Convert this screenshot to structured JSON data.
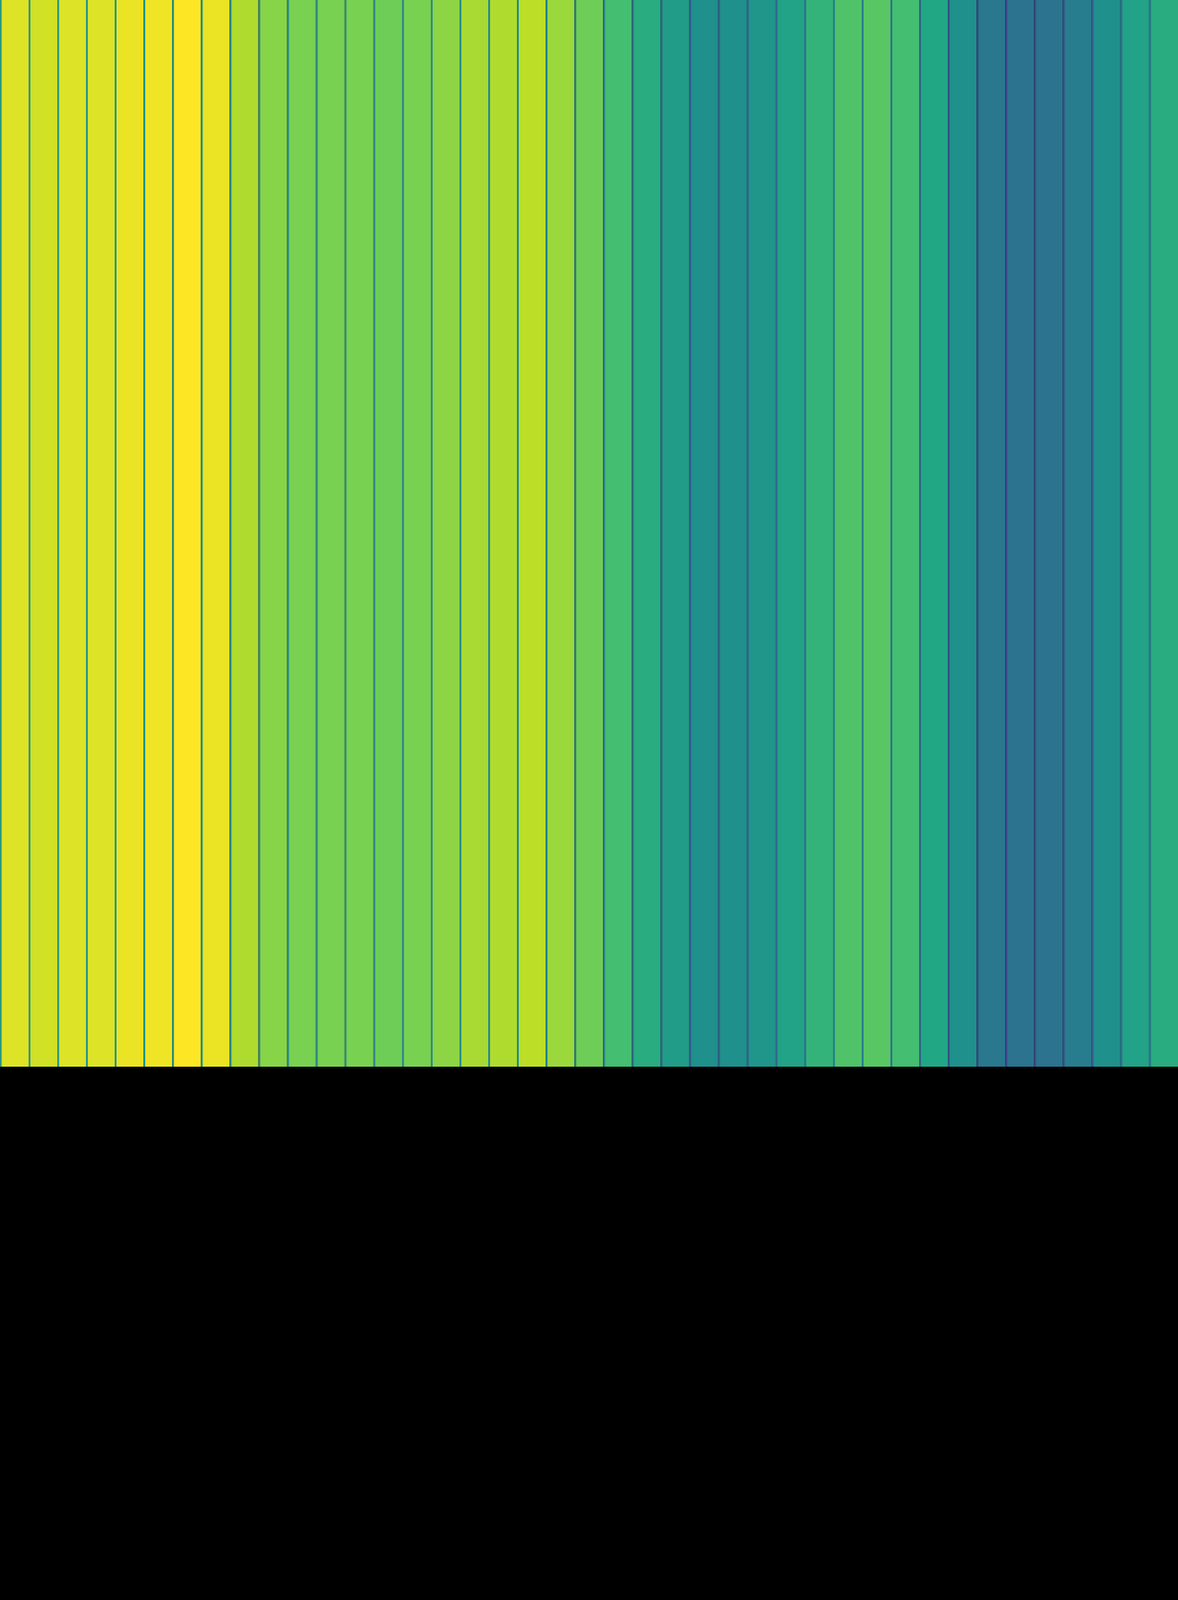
{
  "chart_data": {
    "type": "heatmap",
    "cells": [
      0.95,
      0.93,
      0.95,
      0.95,
      0.97,
      0.98,
      1.0,
      0.97,
      0.88,
      0.82,
      0.8,
      0.8,
      0.8,
      0.78,
      0.8,
      0.83,
      0.87,
      0.88,
      0.9,
      0.85,
      0.78,
      0.7,
      0.62,
      0.55,
      0.5,
      0.5,
      0.52,
      0.58,
      0.65,
      0.72,
      0.74,
      0.7,
      0.6,
      0.5,
      0.4,
      0.38,
      0.38,
      0.42,
      0.5,
      0.58,
      0.62
    ],
    "color_range": [
      0,
      1
    ],
    "tick_labels": false
  }
}
